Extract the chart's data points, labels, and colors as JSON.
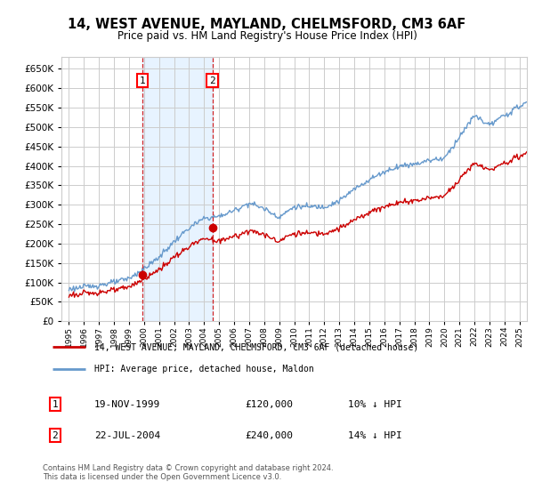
{
  "title": "14, WEST AVENUE, MAYLAND, CHELMSFORD, CM3 6AF",
  "subtitle": "Price paid vs. HM Land Registry's House Price Index (HPI)",
  "ylabel_ticks": [
    0,
    50000,
    100000,
    150000,
    200000,
    250000,
    300000,
    350000,
    400000,
    450000,
    500000,
    550000,
    600000,
    650000
  ],
  "ylim": [
    0,
    680000
  ],
  "xlim_start": 1994.5,
  "xlim_end": 2025.5,
  "sale1_date": 1999.88,
  "sale1_price": 120000,
  "sale1_label": "1",
  "sale1_text": "19-NOV-1999",
  "sale1_amount": "£120,000",
  "sale1_hpi": "10% ↓ HPI",
  "sale2_date": 2004.55,
  "sale2_price": 240000,
  "sale2_label": "2",
  "sale2_text": "22-JUL-2004",
  "sale2_amount": "£240,000",
  "sale2_hpi": "14% ↓ HPI",
  "legend_line1": "14, WEST AVENUE, MAYLAND, CHELMSFORD, CM3 6AF (detached house)",
  "legend_line2": "HPI: Average price, detached house, Maldon",
  "footer": "Contains HM Land Registry data © Crown copyright and database right 2024.\nThis data is licensed under the Open Government Licence v3.0.",
  "grid_color": "#cccccc",
  "hpi_color": "#6699cc",
  "property_color": "#cc0000",
  "background_color": "#ffffff",
  "shade_color": "#ddeeff",
  "x_tick_labels": [
    "1995",
    "1996",
    "1997",
    "1998",
    "1999",
    "2000",
    "2001",
    "2002",
    "2003",
    "2004",
    "2005",
    "2006",
    "2007",
    "2008",
    "2009",
    "2010",
    "2011",
    "2012",
    "2013",
    "2014",
    "2015",
    "2016",
    "2017",
    "2018",
    "2019",
    "2020",
    "2021",
    "2022",
    "2023",
    "2024",
    "2025"
  ]
}
